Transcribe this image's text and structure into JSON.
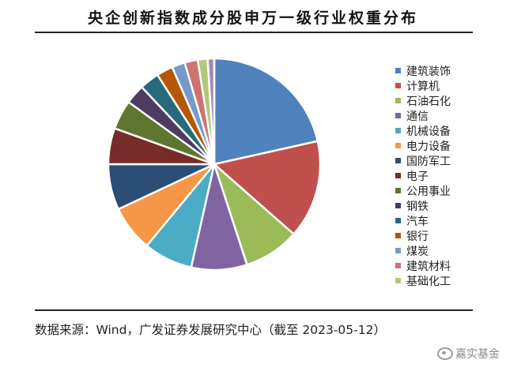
{
  "chart_data": {
    "type": "pie",
    "title": "央企创新指数成分股申万一级行业权重分布",
    "series": [
      {
        "name": "建筑装饰",
        "value": 21.5,
        "color": "#4F81BD"
      },
      {
        "name": "计算机",
        "value": 15.0,
        "color": "#C0504D"
      },
      {
        "name": "石油石化",
        "value": 8.5,
        "color": "#9BBB59"
      },
      {
        "name": "通信",
        "value": 8.5,
        "color": "#8064A2"
      },
      {
        "name": "机械设备",
        "value": 7.5,
        "color": "#4BACC6"
      },
      {
        "name": "电力设备",
        "value": 7.0,
        "color": "#F79646"
      },
      {
        "name": "国防军工",
        "value": 7.0,
        "color": "#2C4D75"
      },
      {
        "name": "电子",
        "value": 5.5,
        "color": "#772C2A"
      },
      {
        "name": "公用事业",
        "value": 4.5,
        "color": "#5F7530"
      },
      {
        "name": "钢铁",
        "value": 3.0,
        "color": "#4D3B62"
      },
      {
        "name": "汽车",
        "value": 3.0,
        "color": "#276A7C"
      },
      {
        "name": "银行",
        "value": 2.5,
        "color": "#B65708"
      },
      {
        "name": "煤炭",
        "value": 2.0,
        "color": "#729ACA"
      },
      {
        "name": "建筑材料",
        "value": 2.0,
        "color": "#CD7371"
      },
      {
        "name": "基础化工",
        "value": 1.5,
        "color": "#AFC97A"
      },
      {
        "name": "",
        "value": 1.0,
        "color": "#A08BBB"
      }
    ],
    "legend_position": "right"
  },
  "source": "数据来源：Wind，广发证券发展研究中心（截至 2023-05-12）",
  "watermark": "嘉实基金"
}
